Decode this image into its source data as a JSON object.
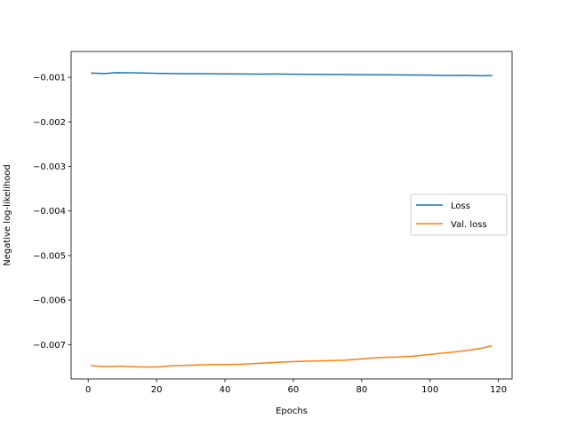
{
  "chart_data": {
    "type": "line",
    "title": "",
    "xlabel": "Epochs",
    "ylabel": "Negative log-likelihood",
    "xlim": [
      -5,
      124
    ],
    "ylim": [
      -0.00777,
      -0.00042
    ],
    "xticks": [
      0,
      20,
      40,
      60,
      80,
      100,
      120
    ],
    "xtick_labels": [
      "0",
      "20",
      "40",
      "60",
      "80",
      "100",
      "120"
    ],
    "yticks": [
      -0.001,
      -0.002,
      -0.003,
      -0.004,
      -0.005,
      -0.006,
      -0.007
    ],
    "ytick_labels": [
      "−0.001",
      "−0.002",
      "−0.003",
      "−0.004",
      "−0.005",
      "−0.006",
      "−0.007"
    ],
    "grid": false,
    "legend_position": "center-right",
    "series": [
      {
        "name": "Loss",
        "color": "#1f77b4",
        "x": [
          1,
          5,
          8,
          12,
          16,
          20,
          25,
          30,
          35,
          40,
          45,
          50,
          55,
          60,
          65,
          70,
          75,
          80,
          85,
          90,
          95,
          100,
          105,
          110,
          115,
          118
        ],
        "y": [
          -0.000905,
          -0.000915,
          -0.000895,
          -0.000898,
          -0.000902,
          -0.00091,
          -0.000915,
          -0.000918,
          -0.00092,
          -0.000922,
          -0.000925,
          -0.000928,
          -0.000925,
          -0.00093,
          -0.000932,
          -0.000935,
          -0.000938,
          -0.00094,
          -0.000942,
          -0.000945,
          -0.000947,
          -0.00095,
          -0.00096,
          -0.000955,
          -0.000965,
          -0.00096
        ]
      },
      {
        "name": "Val. loss",
        "color": "#ff7f0e",
        "x": [
          1,
          5,
          10,
          15,
          20,
          25,
          30,
          35,
          40,
          45,
          50,
          55,
          60,
          65,
          70,
          75,
          80,
          85,
          90,
          95,
          100,
          105,
          110,
          115,
          118
        ],
        "y": [
          -0.00747,
          -0.00749,
          -0.00748,
          -0.0075,
          -0.0075,
          -0.00747,
          -0.00746,
          -0.00745,
          -0.00745,
          -0.00744,
          -0.00742,
          -0.0074,
          -0.00738,
          -0.00737,
          -0.00736,
          -0.00735,
          -0.00732,
          -0.00729,
          -0.00728,
          -0.00726,
          -0.00722,
          -0.00718,
          -0.00714,
          -0.00708,
          -0.00703
        ]
      }
    ]
  }
}
